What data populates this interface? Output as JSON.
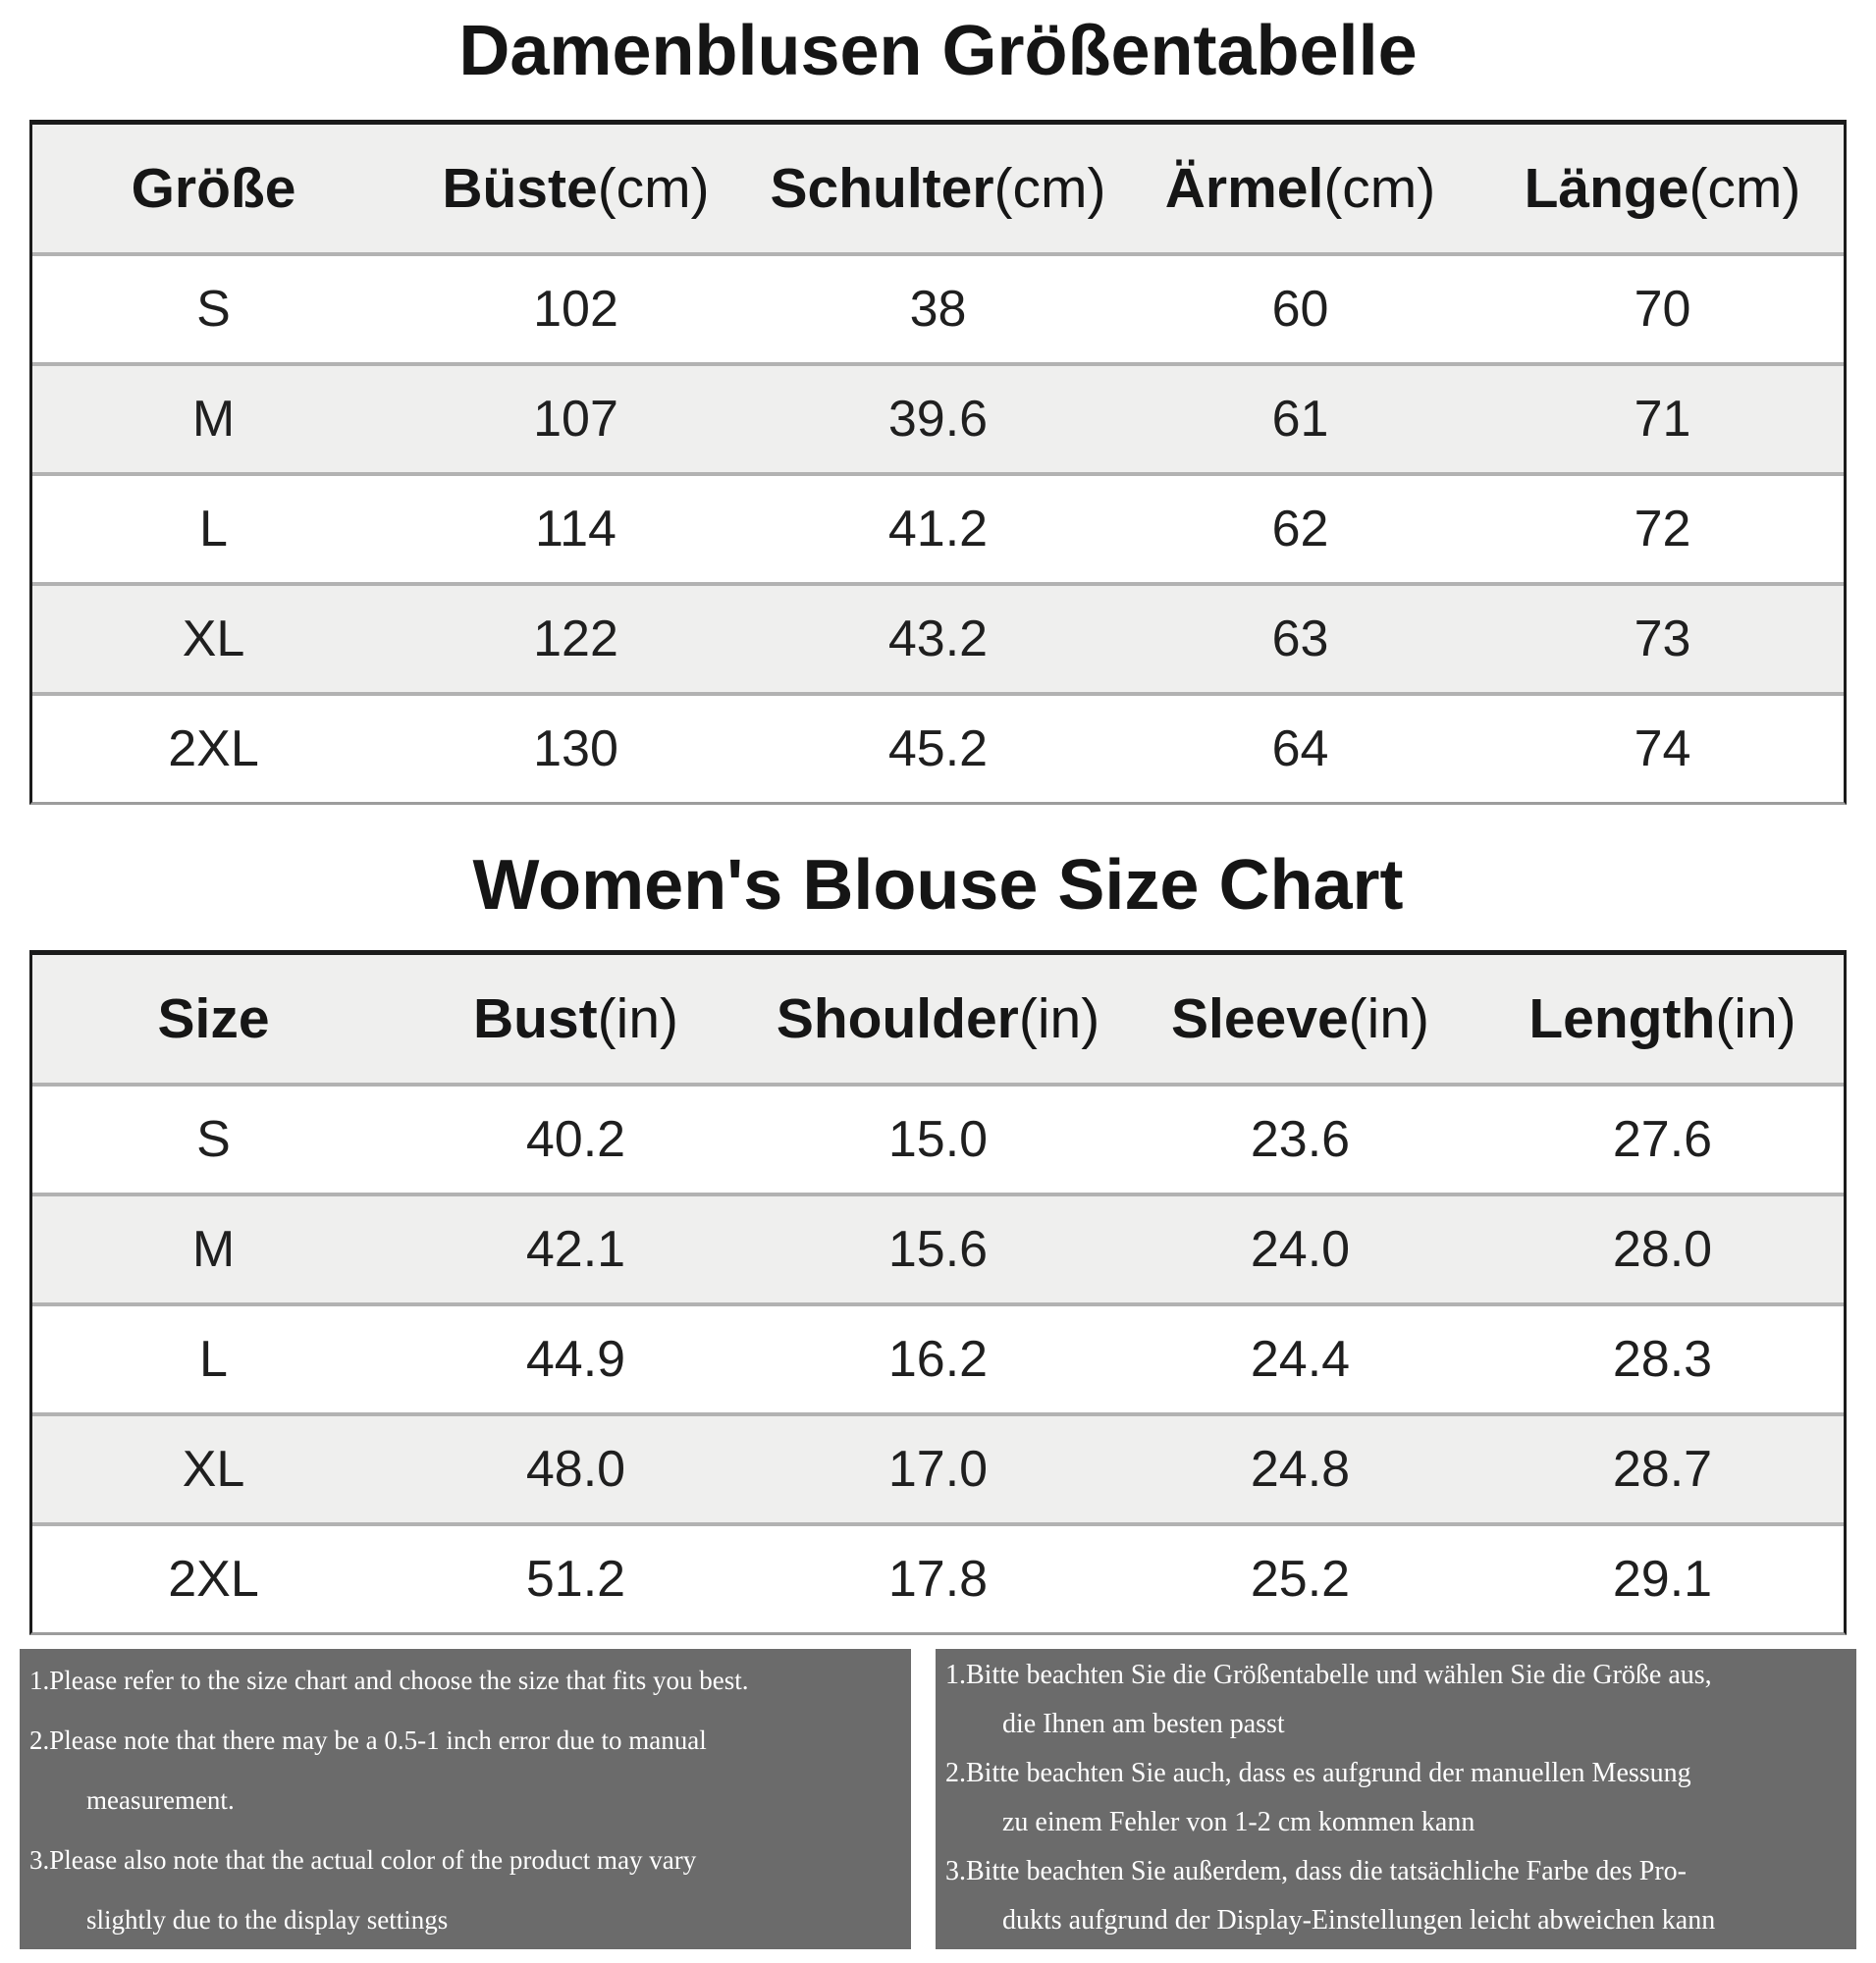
{
  "titles": {
    "de": "Damenblusen Größentabelle",
    "en": "Women's Blouse Size Chart"
  },
  "table_de": {
    "headers": [
      {
        "name": "Größe",
        "unit": ""
      },
      {
        "name": "Büste",
        "unit": "(cm)"
      },
      {
        "name": "Schulter",
        "unit": "(cm)"
      },
      {
        "name": "Ärmel",
        "unit": "(cm)"
      },
      {
        "name": "Länge",
        "unit": "(cm)"
      }
    ],
    "rows": [
      [
        "S",
        "102",
        "38",
        "60",
        "70"
      ],
      [
        "M",
        "107",
        "39.6",
        "61",
        "71"
      ],
      [
        "L",
        "114",
        "41.2",
        "62",
        "72"
      ],
      [
        "XL",
        "122",
        "43.2",
        "63",
        "73"
      ],
      [
        "2XL",
        "130",
        "45.2",
        "64",
        "74"
      ]
    ]
  },
  "table_en": {
    "headers": [
      {
        "name": "Size",
        "unit": ""
      },
      {
        "name": "Bust",
        "unit": "(in)"
      },
      {
        "name": "Shoulder",
        "unit": "(in)"
      },
      {
        "name": "Sleeve",
        "unit": "(in)"
      },
      {
        "name": "Length",
        "unit": "(in)"
      }
    ],
    "rows": [
      [
        "S",
        "40.2",
        "15.0",
        "23.6",
        "27.6"
      ],
      [
        "M",
        "42.1",
        "15.6",
        "24.0",
        "28.0"
      ],
      [
        "L",
        "44.9",
        "16.2",
        "24.4",
        "28.3"
      ],
      [
        "XL",
        "48.0",
        "17.0",
        "24.8",
        "28.7"
      ],
      [
        "2XL",
        "51.2",
        "17.8",
        "25.2",
        "29.1"
      ]
    ]
  },
  "notes_en": {
    "lines": [
      {
        "text": "1.Please refer to the size chart and choose the size that fits you best.",
        "indent": false
      },
      {
        "text": "2.Please note that there may be a 0.5-1 inch error due to manual",
        "indent": false
      },
      {
        "text": "measurement.",
        "indent": true
      },
      {
        "text": "3.Please also note that the actual color of the product may vary",
        "indent": false
      },
      {
        "text": "slightly due to the display settings",
        "indent": true
      }
    ]
  },
  "notes_de": {
    "lines": [
      {
        "text": "1.Bitte beachten Sie die Größentabelle und wählen Sie die Größe aus,",
        "indent": false
      },
      {
        "text": "die Ihnen am besten passt",
        "indent": true
      },
      {
        "text": "2.Bitte beachten Sie auch, dass es aufgrund der manuellen Messung",
        "indent": false
      },
      {
        "text": "zu einem Fehler von 1-2 cm kommen kann",
        "indent": true
      },
      {
        "text": "3.Bitte beachten Sie außerdem, dass die tatsächliche Farbe des Pro-",
        "indent": false
      },
      {
        "text": "dukts aufgrund der Display-Einstellungen leicht abweichen kann",
        "indent": true
      }
    ]
  },
  "colors": {
    "title_text": "#151515",
    "table_border_dark": "#1b1b1b",
    "table_bottom_border": "#9c9c9c",
    "row_divider": "#b2b2b2",
    "header_bg": "#efefee",
    "row_bg": "#ffffff",
    "row_alt_bg": "#efefee",
    "note_box_bg": "#6b6b6b",
    "note_text": "#ffffff"
  }
}
